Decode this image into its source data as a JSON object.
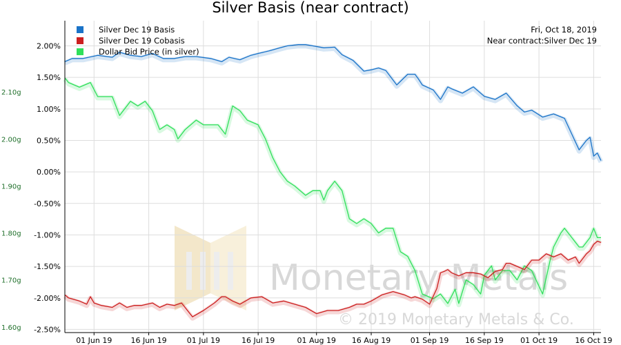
{
  "chart_data": {
    "type": "line",
    "title": "Silver Basis (near contract)",
    "info": {
      "date": "Fri, Oct 18, 2019",
      "near_contract": "Near contract:Silver Dec 19"
    },
    "watermark": {
      "name": "Monetary Metals",
      "copyright": "© 2019 Monetary Metals & Co."
    },
    "x_ticks": [
      "01 Jun 19",
      "16 Jun 19",
      "01 Jul 19",
      "16 Jul 19",
      "01 Aug 19",
      "16 Aug 19",
      "01 Sep 19",
      "16 Sep 19",
      "01 Oct 19",
      "16 Oct 19"
    ],
    "x_tick_days": [
      8,
      23,
      38,
      53,
      69,
      84,
      100,
      115,
      130,
      145
    ],
    "x_range": [
      0,
      147
    ],
    "y_right": {
      "ticks": [
        "2.00%",
        "1.50%",
        "1.00%",
        "0.50%",
        "0.00%",
        "-0.50%",
        "-1.00%",
        "-1.50%",
        "-2.00%",
        "-2.50%"
      ],
      "range": [
        -2.55,
        2.4
      ]
    },
    "y_left": {
      "ticks": [
        "2.10g",
        "2.00g",
        "1.90g",
        "1.80g",
        "1.70g",
        "1.60g"
      ],
      "range": [
        1.588,
        2.2515
      ]
    },
    "grid": true,
    "legend_position": "top-left",
    "colors": {
      "basis": "#1a73c8",
      "cobasis": "#cc1f1f",
      "bid": "#2fe05a",
      "axis": "#000000",
      "grid": "#dddddd",
      "left_ticks": "#1f6f2a"
    },
    "series": [
      {
        "name": "Silver Dec 19 Basis",
        "axis": "right",
        "color": "#1a73c8",
        "x": [
          0,
          2,
          5,
          9,
          13,
          15,
          18,
          21,
          24,
          27,
          30,
          33,
          36,
          40,
          43,
          45,
          48,
          51,
          53,
          56,
          59,
          61,
          64,
          66,
          68,
          71,
          74,
          76,
          79,
          82,
          84,
          86,
          88,
          91,
          94,
          96,
          97,
          98,
          101,
          103,
          105,
          106,
          109,
          112,
          115,
          118,
          121,
          124,
          126,
          128,
          131,
          134,
          137,
          139,
          141,
          143,
          144,
          145,
          146,
          147
        ],
        "y": [
          1.75,
          1.8,
          1.8,
          1.85,
          1.82,
          1.9,
          1.85,
          1.83,
          1.88,
          1.8,
          1.8,
          1.83,
          1.83,
          1.8,
          1.75,
          1.82,
          1.78,
          1.85,
          1.88,
          1.92,
          1.97,
          2.0,
          2.02,
          2.02,
          2.0,
          1.97,
          1.98,
          1.86,
          1.77,
          1.6,
          1.62,
          1.65,
          1.61,
          1.38,
          1.55,
          1.55,
          1.47,
          1.38,
          1.3,
          1.15,
          1.35,
          1.32,
          1.25,
          1.35,
          1.2,
          1.15,
          1.25,
          1.05,
          0.95,
          0.98,
          0.87,
          0.92,
          0.85,
          0.6,
          0.35,
          0.5,
          0.55,
          0.25,
          0.3,
          0.18
        ]
      },
      {
        "name": "Silver Dec 19 Cobasis",
        "axis": "right",
        "color": "#cc1f1f",
        "x": [
          0,
          1,
          4,
          6,
          7,
          8,
          10,
          13,
          15,
          17,
          19,
          21,
          24,
          26,
          28,
          30,
          32,
          35,
          38,
          41,
          43,
          44,
          46,
          48,
          51,
          54,
          57,
          60,
          63,
          66,
          69,
          72,
          75,
          78,
          80,
          82,
          84,
          87,
          90,
          93,
          95,
          96,
          98,
          100,
          102,
          103,
          104,
          105,
          106,
          108,
          110,
          112,
          114,
          116,
          118,
          120,
          121,
          122,
          124,
          126,
          128,
          130,
          131,
          132,
          134,
          136,
          138,
          140,
          141,
          143,
          144,
          145,
          146,
          147
        ],
        "y": [
          -1.95,
          -2.0,
          -2.05,
          -2.1,
          -1.98,
          -2.08,
          -2.12,
          -2.15,
          -2.08,
          -2.15,
          -2.12,
          -2.12,
          -2.08,
          -2.15,
          -2.1,
          -2.12,
          -2.08,
          -2.3,
          -2.2,
          -2.08,
          -1.98,
          -1.98,
          -2.05,
          -2.1,
          -2.0,
          -1.98,
          -2.08,
          -2.05,
          -2.1,
          -2.15,
          -2.25,
          -2.2,
          -2.2,
          -2.15,
          -2.1,
          -2.1,
          -2.05,
          -1.95,
          -1.9,
          -1.95,
          -2.0,
          -1.98,
          -2.02,
          -2.1,
          -1.85,
          -1.6,
          -1.58,
          -1.55,
          -1.6,
          -1.65,
          -1.6,
          -1.6,
          -1.62,
          -1.68,
          -1.58,
          -1.55,
          -1.45,
          -1.45,
          -1.5,
          -1.55,
          -1.4,
          -1.4,
          -1.35,
          -1.3,
          -1.35,
          -1.3,
          -1.4,
          -1.35,
          -1.45,
          -1.3,
          -1.25,
          -1.15,
          -1.1,
          -1.12
        ]
      },
      {
        "name": "Dollar Bid Price (in silver)",
        "axis": "left",
        "color": "#2fe05a",
        "x": [
          0,
          1,
          4,
          7,
          9,
          13,
          15,
          18,
          20,
          22,
          24,
          26,
          28,
          30,
          31,
          33,
          36,
          38,
          42,
          44,
          46,
          48,
          50,
          53,
          55,
          57,
          59,
          61,
          63,
          66,
          68,
          70,
          71,
          72,
          74,
          76,
          78,
          80,
          82,
          84,
          86,
          88,
          90,
          92,
          94,
          96,
          98,
          101,
          103,
          105,
          107,
          108,
          110,
          112,
          114,
          115,
          117,
          118,
          120,
          122,
          124,
          126,
          128,
          131,
          133,
          134,
          136,
          137,
          139,
          140,
          141,
          142,
          144,
          145,
          146,
          147
        ],
        "y": [
          2.13,
          2.12,
          2.11,
          2.12,
          2.09,
          2.09,
          2.05,
          2.08,
          2.07,
          2.08,
          2.06,
          2.02,
          2.03,
          2.02,
          2.0,
          2.02,
          2.04,
          2.03,
          2.03,
          2.01,
          2.07,
          2.06,
          2.04,
          2.03,
          2.0,
          1.96,
          1.93,
          1.91,
          1.9,
          1.88,
          1.89,
          1.89,
          1.87,
          1.89,
          1.91,
          1.89,
          1.83,
          1.82,
          1.83,
          1.82,
          1.8,
          1.81,
          1.81,
          1.76,
          1.75,
          1.72,
          1.67,
          1.66,
          1.67,
          1.65,
          1.68,
          1.65,
          1.7,
          1.69,
          1.67,
          1.71,
          1.73,
          1.7,
          1.72,
          1.72,
          1.7,
          1.73,
          1.72,
          1.67,
          1.74,
          1.77,
          1.8,
          1.81,
          1.79,
          1.78,
          1.77,
          1.77,
          1.79,
          1.81,
          1.79,
          1.79
        ]
      }
    ]
  }
}
